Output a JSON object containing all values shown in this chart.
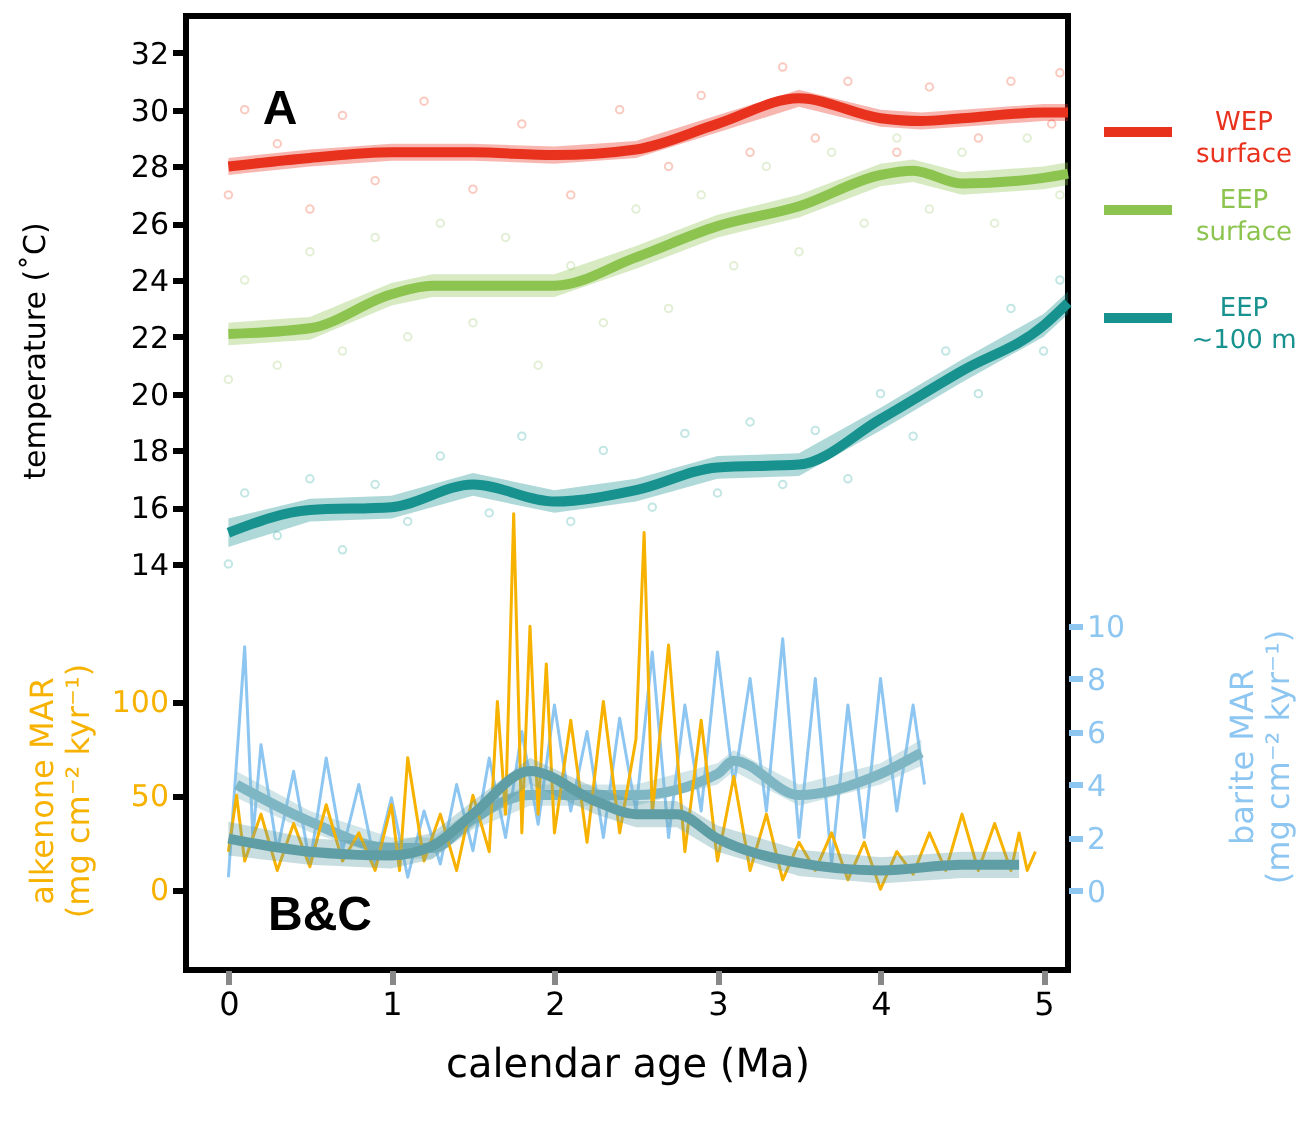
{
  "chart_data": {
    "type": "line",
    "xlabel": "calendar age (Ma)",
    "ylabel": "temperature (˚C)",
    "y2label": "barite MAR (mg cm⁻² kyr⁻¹)",
    "y3label": "alkenone MAR (mg cm⁻² kyr⁻¹)",
    "xlim": [
      -0.26,
      5.15
    ],
    "xticks": [
      0,
      1,
      2,
      3,
      4,
      5
    ],
    "ylim": [
      -0.3,
      33.3
    ],
    "yticks": [
      14,
      16,
      18,
      20,
      22,
      24,
      26,
      28,
      30,
      32
    ],
    "y2lim": [
      -3,
      33
    ],
    "y2ticks": [
      0,
      2,
      4,
      6,
      8,
      10
    ],
    "y3lim": [
      -43,
      465
    ],
    "y3ticks": [
      0,
      50,
      100
    ],
    "grid": false,
    "legend": "right",
    "annotations": [
      "A",
      "B&C"
    ],
    "series": [
      {
        "type": "scatter",
        "marker": "circle",
        "color": "#f7b4a6",
        "x": [
          0,
          0.1,
          0.3,
          0.5,
          0.7,
          0.9,
          1.2,
          1.5,
          1.8,
          2.1,
          2.4,
          2.7,
          2.9,
          3.2,
          3.4,
          3.6,
          3.8,
          4.1,
          4.3,
          4.6,
          4.8,
          5.05,
          5.1
        ],
        "values": [
          27,
          30,
          28.8,
          26.5,
          29.8,
          27.5,
          30.3,
          27.2,
          29.5,
          27,
          30,
          28,
          30.5,
          28.5,
          31.5,
          29,
          31,
          28.5,
          30.8,
          29,
          31,
          29.5,
          31.3
        ]
      },
      {
        "type": "scatter",
        "marker": "circle",
        "color": "#d6e9c4",
        "x": [
          0,
          0.1,
          0.3,
          0.5,
          0.7,
          0.9,
          1.1,
          1.3,
          1.5,
          1.7,
          1.9,
          2.1,
          2.3,
          2.5,
          2.7,
          2.9,
          3.1,
          3.3,
          3.5,
          3.7,
          3.9,
          4.1,
          4.3,
          4.5,
          4.7,
          4.9,
          5.1
        ],
        "values": [
          20.5,
          24,
          21,
          25,
          21.5,
          25.5,
          22,
          26,
          22.5,
          25.5,
          21,
          24.5,
          22.5,
          26.5,
          23,
          27,
          24.5,
          28,
          25,
          28.5,
          26,
          29,
          26.5,
          28.5,
          26,
          29,
          27
        ]
      },
      {
        "type": "scatter",
        "marker": "circle",
        "color": "#a9dcd9",
        "x": [
          0,
          0.1,
          0.3,
          0.5,
          0.7,
          0.9,
          1.1,
          1.3,
          1.6,
          1.8,
          2.1,
          2.3,
          2.6,
          2.8,
          3.0,
          3.2,
          3.4,
          3.6,
          3.8,
          4.0,
          4.2,
          4.4,
          4.6,
          4.8,
          5.0,
          5.1
        ],
        "values": [
          14,
          16.5,
          15,
          17,
          14.5,
          16.8,
          15.5,
          17.8,
          15.8,
          18.5,
          15.5,
          18,
          16,
          18.6,
          16.5,
          19,
          16.8,
          18.7,
          17,
          20,
          18.5,
          21.5,
          20,
          23,
          21.5,
          24
        ]
      },
      {
        "name": "WEP surface",
        "color": "#e8321e",
        "x": [
          0,
          0.5,
          1,
          1.5,
          2,
          2.5,
          3,
          3.5,
          4,
          4.25,
          4.5,
          5,
          5.15
        ],
        "values": [
          28.0,
          28.3,
          28.5,
          28.5,
          28.4,
          28.6,
          29.5,
          30.4,
          29.7,
          29.6,
          29.7,
          29.9,
          29.9
        ],
        "lower": [
          27.7,
          28.0,
          28.2,
          28.2,
          28.1,
          28.3,
          29.2,
          30.1,
          29.4,
          29.3,
          29.4,
          29.6,
          29.6
        ],
        "upper": [
          28.3,
          28.6,
          28.8,
          28.8,
          28.7,
          28.9,
          29.8,
          30.7,
          30.0,
          29.9,
          30.0,
          30.2,
          30.2
        ]
      },
      {
        "name": "EEP surface",
        "color": "#8cc44f",
        "x": [
          0,
          0.5,
          1,
          1.25,
          1.5,
          2,
          2.5,
          3,
          3.5,
          4,
          4.2,
          4.5,
          5,
          5.15
        ],
        "values": [
          22.1,
          22.3,
          23.5,
          23.8,
          23.8,
          23.8,
          24.8,
          25.9,
          26.6,
          27.7,
          27.85,
          27.4,
          27.6,
          27.75
        ],
        "lower": [
          21.7,
          21.9,
          23.1,
          23.4,
          23.4,
          23.4,
          24.4,
          25.5,
          26.2,
          27.3,
          27.45,
          27.0,
          27.2,
          27.35
        ],
        "upper": [
          22.5,
          22.7,
          23.9,
          24.2,
          24.2,
          24.2,
          25.2,
          26.3,
          27.0,
          28.1,
          28.25,
          27.8,
          28.0,
          28.15
        ]
      },
      {
        "name": "EEP ~100 m",
        "color": "#17928e",
        "x": [
          0,
          0.5,
          1,
          1.5,
          2,
          2.5,
          3,
          3.5,
          4,
          4.5,
          5,
          5.15
        ],
        "values": [
          15.1,
          15.9,
          16.0,
          16.8,
          16.2,
          16.6,
          17.4,
          17.5,
          19.1,
          20.8,
          22.4,
          23.2
        ],
        "lower": [
          14.6,
          15.5,
          15.6,
          16.4,
          15.8,
          16.2,
          17.0,
          17.1,
          18.7,
          20.4,
          22.0,
          22.8
        ],
        "upper": [
          15.6,
          16.3,
          16.4,
          17.2,
          16.6,
          17.0,
          17.8,
          17.9,
          19.5,
          21.2,
          22.8,
          23.6
        ]
      },
      {
        "axis": "y2",
        "color": "#8ec6f2",
        "x": [
          0,
          0.1,
          0.15,
          0.2,
          0.3,
          0.4,
          0.5,
          0.6,
          0.7,
          0.8,
          0.9,
          1.0,
          1.1,
          1.2,
          1.3,
          1.4,
          1.5,
          1.6,
          1.7,
          1.8,
          1.9,
          2.0,
          2.1,
          2.2,
          2.3,
          2.4,
          2.5,
          2.6,
          2.7,
          2.8,
          2.9,
          3.0,
          3.1,
          3.2,
          3.3,
          3.4,
          3.5,
          3.6,
          3.7,
          3.8,
          3.9,
          4.0,
          4.1,
          4.2,
          4.27
        ],
        "values": [
          0.5,
          9.2,
          2,
          5.5,
          1.5,
          4.5,
          1,
          5,
          1.5,
          4,
          1,
          3.5,
          0.5,
          3,
          1,
          4,
          1.5,
          5,
          2,
          6,
          2.5,
          7,
          3,
          6,
          2,
          6.5,
          3,
          9,
          2,
          7,
          3,
          9,
          4,
          8,
          3,
          9.5,
          2,
          8,
          1,
          7,
          2,
          8,
          3,
          7,
          4
        ]
      },
      {
        "axis": "y3",
        "color": "#f7b200",
        "x": [
          0,
          0.05,
          0.1,
          0.2,
          0.3,
          0.4,
          0.5,
          0.6,
          0.7,
          0.8,
          0.9,
          1.0,
          1.05,
          1.1,
          1.2,
          1.3,
          1.4,
          1.5,
          1.6,
          1.65,
          1.7,
          1.75,
          1.8,
          1.85,
          1.9,
          1.95,
          2.0,
          2.1,
          2.2,
          2.3,
          2.4,
          2.5,
          2.55,
          2.6,
          2.7,
          2.8,
          2.9,
          3.0,
          3.1,
          3.2,
          3.3,
          3.4,
          3.5,
          3.6,
          3.7,
          3.8,
          3.9,
          4.0,
          4.1,
          4.2,
          4.3,
          4.4,
          4.5,
          4.6,
          4.7,
          4.8,
          4.85,
          4.9,
          4.95
        ],
        "values": [
          20,
          50,
          15,
          40,
          10,
          35,
          12,
          45,
          15,
          30,
          10,
          45,
          10,
          70,
          15,
          40,
          10,
          50,
          20,
          100,
          40,
          200,
          30,
          140,
          40,
          120,
          30,
          90,
          25,
          100,
          30,
          80,
          190,
          40,
          130,
          20,
          90,
          15,
          60,
          10,
          40,
          5,
          25,
          10,
          30,
          5,
          25,
          0,
          20,
          8,
          30,
          10,
          40,
          10,
          35,
          10,
          30,
          10,
          20
        ]
      },
      {
        "axis": "y2",
        "color": "#7fb6c4",
        "x": [
          0.05,
          0.5,
          1,
          1.25,
          1.5,
          1.85,
          2.5,
          3,
          3.1,
          3.5,
          4,
          4.25
        ],
        "values": [
          4.0,
          2.6,
          1.6,
          1.6,
          2.7,
          3.6,
          3.6,
          4.4,
          4.9,
          3.6,
          4.4,
          5.2
        ],
        "lower": [
          3.5,
          2.2,
          1.2,
          1.2,
          2.3,
          3.2,
          3.2,
          4.0,
          4.5,
          3.2,
          4.0,
          4.7
        ],
        "upper": [
          4.5,
          3.0,
          2.0,
          2.0,
          3.1,
          4.0,
          4.0,
          4.8,
          5.3,
          4.0,
          4.8,
          5.7
        ]
      },
      {
        "axis": "y3",
        "color": "#5f9ea5",
        "x": [
          0,
          0.5,
          1,
          1.25,
          1.5,
          1.85,
          2.25,
          2.5,
          2.75,
          3,
          3.5,
          4,
          4.5,
          4.85
        ],
        "values": [
          27,
          20,
          18,
          23,
          40,
          63,
          47,
          40,
          40,
          27,
          14,
          10,
          13,
          13
        ],
        "lower": [
          18,
          13,
          11,
          16,
          33,
          56,
          40,
          33,
          33,
          20,
          7,
          3,
          6,
          6
        ],
        "upper": [
          36,
          27,
          25,
          30,
          47,
          70,
          54,
          47,
          47,
          34,
          21,
          17,
          20,
          20
        ]
      }
    ]
  }
}
